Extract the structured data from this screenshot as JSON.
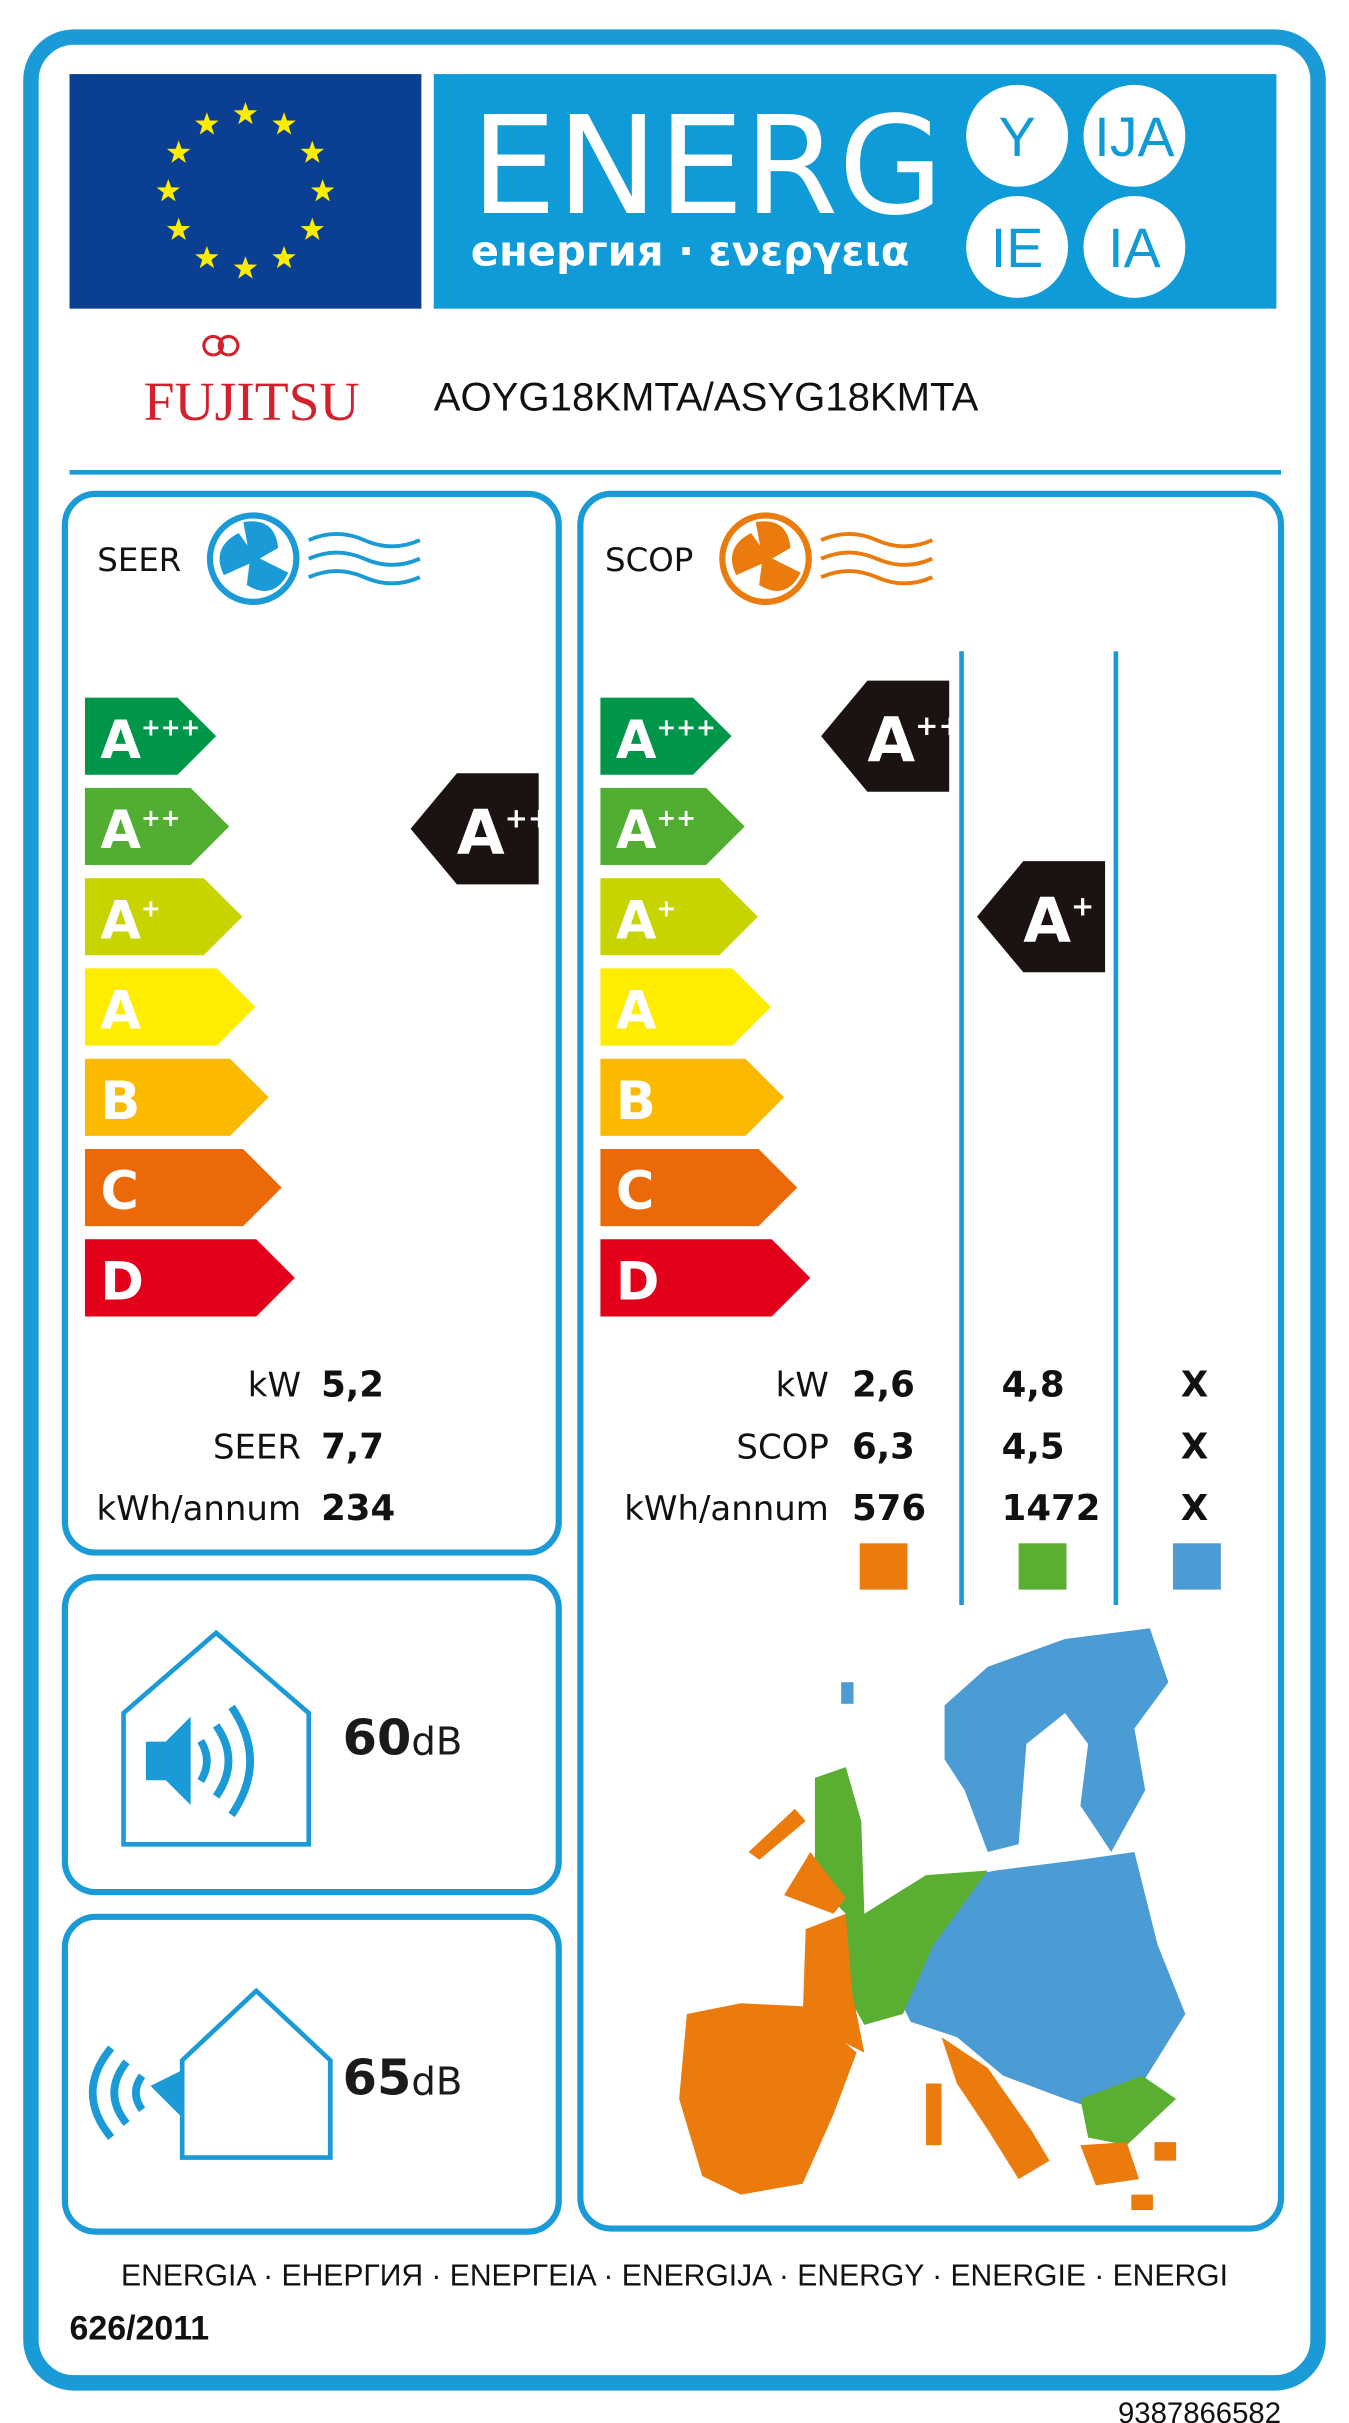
{
  "header": {
    "title": "ENERG",
    "subtitle": "енергия · ενεργεια",
    "suffixes": [
      "Y",
      "IJA",
      "IE",
      "IA"
    ]
  },
  "supplier": {
    "brand": "FUJITSU",
    "model": "AOYG18KMTA/ASYG18KMTA"
  },
  "cooling": {
    "label": "SEER",
    "classes": [
      {
        "letter": "A",
        "plus": "+++"
      },
      {
        "letter": "A",
        "plus": "++"
      },
      {
        "letter": "A",
        "plus": "+"
      },
      {
        "letter": "A"
      },
      {
        "letter": "B"
      },
      {
        "letter": "C"
      },
      {
        "letter": "D"
      }
    ],
    "rating": {
      "letter": "A",
      "plus": "++"
    },
    "rows": [
      {
        "label": "kW",
        "value": "5,2"
      },
      {
        "label": "SEER",
        "value": "7,7"
      },
      {
        "label": "kWh/annum",
        "value": "234"
      }
    ]
  },
  "heating": {
    "label": "SCOP",
    "classes": [
      {
        "letter": "A",
        "plus": "+++"
      },
      {
        "letter": "A",
        "plus": "++"
      },
      {
        "letter": "A",
        "plus": "+"
      },
      {
        "letter": "A"
      },
      {
        "letter": "B"
      },
      {
        "letter": "C"
      },
      {
        "letter": "D"
      }
    ],
    "ratings": [
      {
        "letter": "A",
        "plus": "+++"
      },
      {
        "letter": "A",
        "plus": "+"
      }
    ],
    "rows": [
      {
        "label": "kW",
        "values": [
          "2,6",
          "4,8",
          "X"
        ]
      },
      {
        "label": "SCOP",
        "values": [
          "6,3",
          "4,5",
          "X"
        ]
      },
      {
        "label": "kWh/annum",
        "values": [
          "576",
          "1472",
          "X"
        ]
      }
    ]
  },
  "noise": [
    {
      "value": "60",
      "unit": "dB"
    },
    {
      "value": "65",
      "unit": "dB"
    }
  ],
  "footer": {
    "languages": "ENERGIA · ЕНЕРГИЯ · ΕΝΕΡΓΕΙΑ · ENERGIJA · ENERGY · ENERGIE · ENERGI",
    "regulation": "626/2011",
    "code": "9387866582"
  }
}
